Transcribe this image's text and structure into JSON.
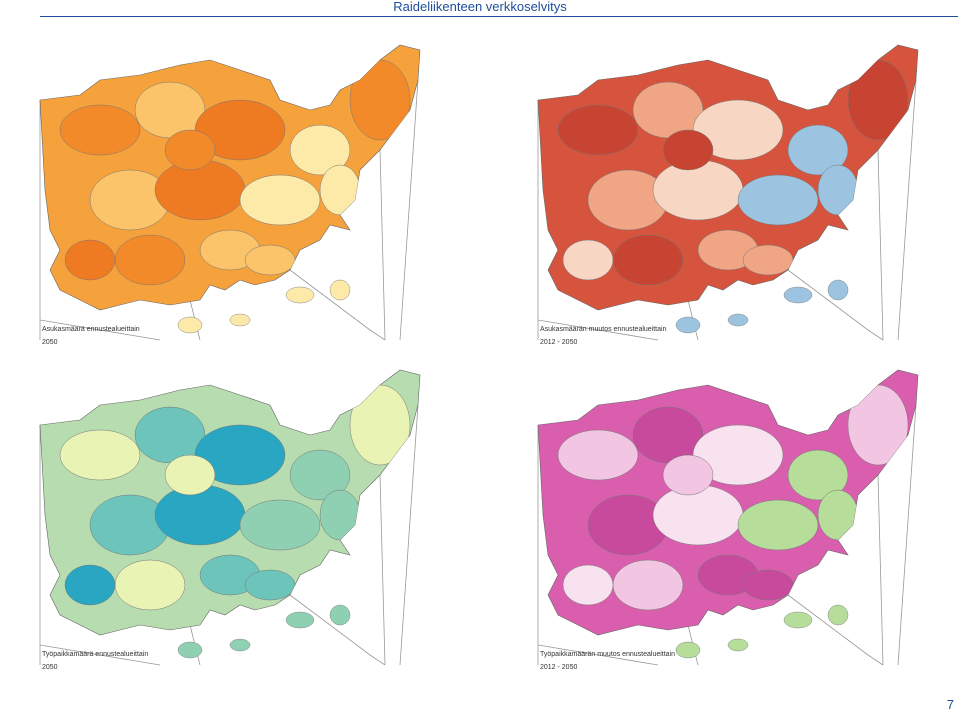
{
  "header": {
    "title": "Raideliikenteen verkkoselvitys"
  },
  "panels": [
    {
      "caption": "Asukasmäärä ennustealueittain",
      "period": "2050"
    },
    {
      "caption": "Asukasmäärän muutos ennustealueittain",
      "period": "2012 - 2050"
    },
    {
      "caption": "Työpaikkamäärä ennustealueittain",
      "period": "2050"
    },
    {
      "caption": "Työpaikkamäärän muutos ennustealueittain",
      "period": "2012 - 2050"
    }
  ],
  "footer": {
    "page_number": "7"
  }
}
